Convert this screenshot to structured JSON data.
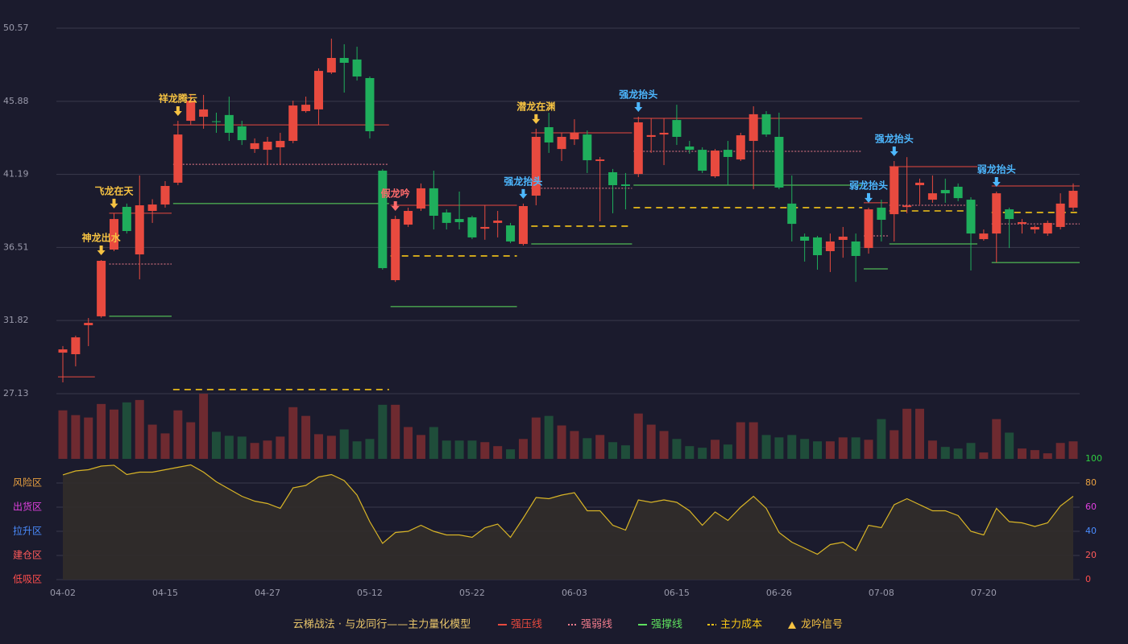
{
  "chart_data": {
    "type": "candlestick",
    "categories": [
      "04-02",
      null,
      null,
      null,
      null,
      null,
      null,
      null,
      "04-15",
      null,
      null,
      null,
      null,
      null,
      null,
      null,
      "04-27",
      null,
      null,
      null,
      null,
      null,
      null,
      null,
      "05-12",
      null,
      null,
      null,
      null,
      null,
      null,
      null,
      "05-22",
      null,
      null,
      null,
      null,
      null,
      null,
      null,
      "06-03",
      null,
      null,
      null,
      null,
      null,
      null,
      null,
      "06-15",
      null,
      null,
      null,
      null,
      null,
      null,
      null,
      "06-26",
      null,
      null,
      null,
      null,
      null,
      null,
      null,
      "07-08",
      null,
      null,
      null,
      null,
      null,
      null,
      null,
      "07-20",
      null,
      null,
      null,
      null,
      null,
      null,
      null
    ],
    "open": [
      29.76,
      29.66,
      31.52,
      32.09,
      36.37,
      39.11,
      36.06,
      38.85,
      39.26,
      40.66,
      44.63,
      44.89,
      44.6,
      45.0,
      44.27,
      42.82,
      42.77,
      42.93,
      43.34,
      45.25,
      45.36,
      47.73,
      48.66,
      48.56,
      47.37,
      41.43,
      34.41,
      37.97,
      39.0,
      40.3,
      38.75,
      38.33,
      38.44,
      37.71,
      38.08,
      37.92,
      36.73,
      39.83,
      44.22,
      42.82,
      43.44,
      43.75,
      42.05,
      41.33,
      40.55,
      41.22,
      43.6,
      43.75,
      44.68,
      42.98,
      42.77,
      41.07,
      42.77,
      42.15,
      43.34,
      45.05,
      43.6,
      39.32,
      37.2,
      37.15,
      36.27,
      36.99,
      36.89,
      36.47,
      39.06,
      38.64,
      39.1,
      40.5,
      39.57,
      40.19,
      40.4,
      39.57,
      37.04,
      37.4,
      38.95,
      38.02,
      37.66,
      37.4,
      37.82,
      39.06
    ],
    "high": [
      30.18,
      30.85,
      31.98,
      35.7,
      38.7,
      39.32,
      41.12,
      39.6,
      40.76,
      44.63,
      46.29,
      46.29,
      45.15,
      46.18,
      44.63,
      43.5,
      43.6,
      43.86,
      45.92,
      46.18,
      47.99,
      49.9,
      49.54,
      49.38,
      47.47,
      41.53,
      38.54,
      39.06,
      40.61,
      41.43,
      38.95,
      40.09,
      38.54,
      39.21,
      38.85,
      38.08,
      39.32,
      44.12,
      45.15,
      43.86,
      44.73,
      44.01,
      42.31,
      41.54,
      41.28,
      44.89,
      44.79,
      44.79,
      45.66,
      43.34,
      42.93,
      42.82,
      43.34,
      43.86,
      45.56,
      45.25,
      45.15,
      41.12,
      37.4,
      37.25,
      37.4,
      37.82,
      37.4,
      39.06,
      39.57,
      42.05,
      42.3,
      40.92,
      41.12,
      40.92,
      40.61,
      39.73,
      37.66,
      40.09,
      39.06,
      38.33,
      37.92,
      38.23,
      39.98,
      40.61
    ],
    "low": [
      27.85,
      28.88,
      30.18,
      32.0,
      36.27,
      37.4,
      34.46,
      38.08,
      39.06,
      40.5,
      44.37,
      44.12,
      43.86,
      43.34,
      43.08,
      42.57,
      41.79,
      41.79,
      43.19,
      45.15,
      44.37,
      47.63,
      46.44,
      47.21,
      43.5,
      35.08,
      34.3,
      37.82,
      38.85,
      37.66,
      37.66,
      37.66,
      37.04,
      37.0,
      37.15,
      36.78,
      36.63,
      39.21,
      42.57,
      42.05,
      43.08,
      41.28,
      38.18,
      38.7,
      38.95,
      41.02,
      42.57,
      41.79,
      43.08,
      42.52,
      41.28,
      40.97,
      40.5,
      42.05,
      40.24,
      43.6,
      40.24,
      36.89,
      35.6,
      35.08,
      34.93,
      35.85,
      34.3,
      36.11,
      36.89,
      36.89,
      38.7,
      39.27,
      39.37,
      39.37,
      39.47,
      35.03,
      36.94,
      35.54,
      36.47,
      37.4,
      37.4,
      37.25,
      37.66,
      38.85
    ],
    "close": [
      29.97,
      30.74,
      31.67,
      35.65,
      38.33,
      37.56,
      39.21,
      39.26,
      40.45,
      43.75,
      45.92,
      45.36,
      44.55,
      43.86,
      43.39,
      43.19,
      43.29,
      43.34,
      45.61,
      45.66,
      47.83,
      48.66,
      48.35,
      47.47,
      43.96,
      35.18,
      38.33,
      38.85,
      40.3,
      38.54,
      38.08,
      38.13,
      37.15,
      37.82,
      38.23,
      36.89,
      39.16,
      43.6,
      43.24,
      43.6,
      43.86,
      42.1,
      42.15,
      40.5,
      40.45,
      44.53,
      43.71,
      43.86,
      43.6,
      42.77,
      41.43,
      42.72,
      42.31,
      43.7,
      45.05,
      43.75,
      40.35,
      38.02,
      36.94,
      36.01,
      36.89,
      37.2,
      35.96,
      38.95,
      38.28,
      41.69,
      39.2,
      40.66,
      39.98,
      39.98,
      39.67,
      37.4,
      37.4,
      39.98,
      38.33,
      38.13,
      37.82,
      38.08,
      39.32,
      40.14
    ],
    "up_color": "#e84a3f",
    "down_color": "#1fae5c",
    "ylim": [
      27.13,
      50.57
    ],
    "yticks": [
      27.13,
      31.82,
      36.51,
      41.19,
      45.88,
      50.57
    ],
    "grid": true,
    "volume": {
      "values": [
        61,
        55,
        52,
        69,
        62,
        71,
        74,
        43,
        32,
        61,
        46,
        82,
        34,
        29,
        28,
        20,
        23,
        28,
        65,
        54,
        31,
        29,
        37,
        22,
        25,
        68,
        68,
        40,
        30,
        40,
        23,
        23,
        23,
        21,
        16,
        12,
        25,
        52,
        54,
        42,
        35,
        26,
        30,
        21,
        17,
        57,
        43,
        35,
        25,
        16,
        14,
        24,
        18,
        46,
        46,
        30,
        27,
        30,
        25,
        22,
        22,
        27,
        27,
        24,
        50,
        36,
        63,
        63,
        23,
        15,
        13,
        20,
        8,
        50,
        33,
        13,
        11,
        7,
        20,
        22
      ],
      "up_color": "#6e2a30",
      "down_color": "#1f4d3a"
    },
    "indicator": {
      "values": [
        86.7,
        90,
        91,
        94,
        94.7,
        87,
        89,
        89,
        91,
        93,
        95,
        89,
        81,
        75,
        69,
        65,
        63,
        59,
        76,
        78,
        85,
        87,
        82,
        70,
        48,
        30,
        39,
        40,
        45,
        40,
        37,
        37,
        35,
        43,
        46,
        35,
        51,
        68,
        67,
        70,
        72,
        57,
        57,
        45,
        41,
        66,
        64,
        66,
        64,
        57,
        45,
        56,
        49,
        60,
        69,
        59,
        39,
        31,
        26,
        21,
        29,
        31,
        24,
        45,
        43,
        62,
        67,
        62,
        57,
        57,
        53,
        40,
        37,
        59,
        48,
        47,
        44,
        47,
        61,
        69
      ],
      "color": "#d9b526",
      "fill": "#322e2a",
      "ylim": [
        0,
        100
      ],
      "yticks": [
        0,
        20,
        40,
        60,
        80,
        100
      ],
      "ytick_colors": [
        "#ff4d4d",
        "#ff5a5a",
        "#4a8cff",
        "#e040e0",
        "#e8a040",
        "#2ecc40"
      ],
      "zones": [
        {
          "label": "风险区",
          "value": 80,
          "color": "#e8a040"
        },
        {
          "label": "出货区",
          "value": 60,
          "color": "#e040e0"
        },
        {
          "label": "拉升区",
          "value": 40,
          "color": "#4a8cff"
        },
        {
          "label": "建仓区",
          "value": 20,
          "color": "#ff5a5a"
        },
        {
          "label": "低吸区",
          "value": 0,
          "color": "#ff4d4d"
        }
      ]
    },
    "levels": [
      {
        "name": "强压线",
        "color": "#e84a3f",
        "style": "solid",
        "segments": [
          {
            "start": 0,
            "end": 2,
            "value": 28.21
          },
          {
            "start": 4,
            "end": 8,
            "value": 38.7
          },
          {
            "start": 9,
            "end": 25,
            "value": 44.37
          },
          {
            "start": 26,
            "end": 35,
            "value": 39.21
          },
          {
            "start": 37,
            "end": 44,
            "value": 43.86
          },
          {
            "start": 45,
            "end": 62,
            "value": 44.79
          },
          {
            "start": 63,
            "end": 64,
            "value": 39.37
          },
          {
            "start": 65,
            "end": 71,
            "value": 41.69
          },
          {
            "start": 73,
            "end": 79,
            "value": 40.45
          }
        ]
      },
      {
        "name": "强弱线",
        "color": "#f07c8c",
        "style": "dotted",
        "segments": [
          {
            "start": 4,
            "end": 8,
            "value": 35.44
          },
          {
            "start": 9,
            "end": 25,
            "value": 41.84
          },
          {
            "start": 37,
            "end": 44,
            "value": 40.3
          },
          {
            "start": 45,
            "end": 62,
            "value": 42.67
          },
          {
            "start": 63,
            "end": 64,
            "value": 37.25
          },
          {
            "start": 65,
            "end": 71,
            "value": 39.21
          },
          {
            "start": 73,
            "end": 79,
            "value": 38.02
          }
        ]
      },
      {
        "name": "强撑线",
        "color": "#5ee05e",
        "style": "solid",
        "segments": [
          {
            "start": 4,
            "end": 8,
            "value": 32.09
          },
          {
            "start": 9,
            "end": 25,
            "value": 39.32
          },
          {
            "start": 26,
            "end": 35,
            "value": 32.71
          },
          {
            "start": 37,
            "end": 44,
            "value": 36.73
          },
          {
            "start": 45,
            "end": 62,
            "value": 40.5
          },
          {
            "start": 63,
            "end": 64,
            "value": 35.13
          },
          {
            "start": 65,
            "end": 71,
            "value": 36.73
          },
          {
            "start": 73,
            "end": 79,
            "value": 35.54
          }
        ]
      },
      {
        "name": "主力成本",
        "color": "#f5c518",
        "style": "dashed",
        "segments": [
          {
            "start": 9,
            "end": 25,
            "value": 27.39
          },
          {
            "start": 26,
            "end": 35,
            "value": 35.96
          },
          {
            "start": 37,
            "end": 44,
            "value": 37.87
          },
          {
            "start": 45,
            "end": 62,
            "value": 39.06
          },
          {
            "start": 65,
            "end": 71,
            "value": 38.85
          },
          {
            "start": 73,
            "end": 79,
            "value": 38.75
          }
        ]
      }
    ],
    "signals_name": "龙吟信号",
    "signals_color": "#f5c242",
    "signals": [
      {
        "label": "神龙出水",
        "index": 3,
        "color": "#f5c242"
      },
      {
        "label": "飞龙在天",
        "index": 4,
        "color": "#f5c242"
      },
      {
        "label": "祥龙腾云",
        "index": 9,
        "color": "#f5c242"
      },
      {
        "label": "假龙吟",
        "index": 26,
        "color": "#ff6b6b"
      },
      {
        "label": "强龙抬头",
        "index": 36,
        "color": "#4db8ff"
      },
      {
        "label": "潜龙在渊",
        "index": 37,
        "color": "#f5c242"
      },
      {
        "label": "强龙抬头",
        "index": 45,
        "color": "#4db8ff"
      },
      {
        "label": "弱龙抬头",
        "index": 63,
        "color": "#4db8ff"
      },
      {
        "label": "强龙抬头",
        "index": 65,
        "color": "#4db8ff"
      },
      {
        "label": "弱龙抬头",
        "index": 73,
        "color": "#4db8ff"
      }
    ],
    "legend_title": "云梯战法 · 与龙同行——主力量化模型"
  }
}
